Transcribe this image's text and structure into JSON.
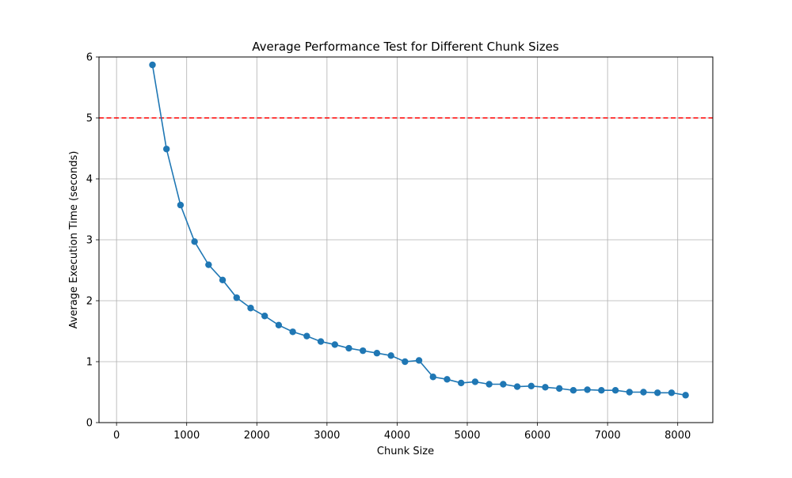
{
  "chart_data": {
    "type": "line",
    "title": "Average Performance Test for Different Chunk Sizes",
    "xlabel": "Chunk Size",
    "ylabel": "Average Execution Time (seconds)",
    "xlim": [
      -250,
      8500
    ],
    "ylim": [
      0,
      6
    ],
    "xticks": [
      0,
      1000,
      2000,
      3000,
      4000,
      5000,
      6000,
      7000,
      8000
    ],
    "yticks": [
      0,
      1,
      2,
      3,
      4,
      5,
      6
    ],
    "grid": true,
    "line_color": "#1f77b4",
    "threshold": {
      "y": 5,
      "color": "#ff0000",
      "style": "dashed"
    },
    "series": [
      {
        "x": [
          512,
          712,
          912,
          1112,
          1312,
          1512,
          1712,
          1912,
          2112,
          2312,
          2512,
          2712,
          2912,
          3112,
          3312,
          3512,
          3712,
          3912,
          4112,
          4312,
          4512,
          4712,
          4912,
          5112,
          5312,
          5512,
          5712,
          5912,
          6112,
          6312,
          6512,
          6712,
          6912,
          7112,
          7312,
          7512,
          7712,
          7912,
          8112
        ],
        "y": [
          5.87,
          4.49,
          3.57,
          2.97,
          2.59,
          2.34,
          2.05,
          1.88,
          1.75,
          1.6,
          1.49,
          1.42,
          1.33,
          1.28,
          1.22,
          1.18,
          1.14,
          1.1,
          1.0,
          1.02,
          0.75,
          0.71,
          0.65,
          0.67,
          0.63,
          0.63,
          0.59,
          0.6,
          0.58,
          0.56,
          0.53,
          0.54,
          0.53,
          0.53,
          0.5,
          0.5,
          0.49,
          0.49,
          0.45
        ]
      }
    ]
  }
}
